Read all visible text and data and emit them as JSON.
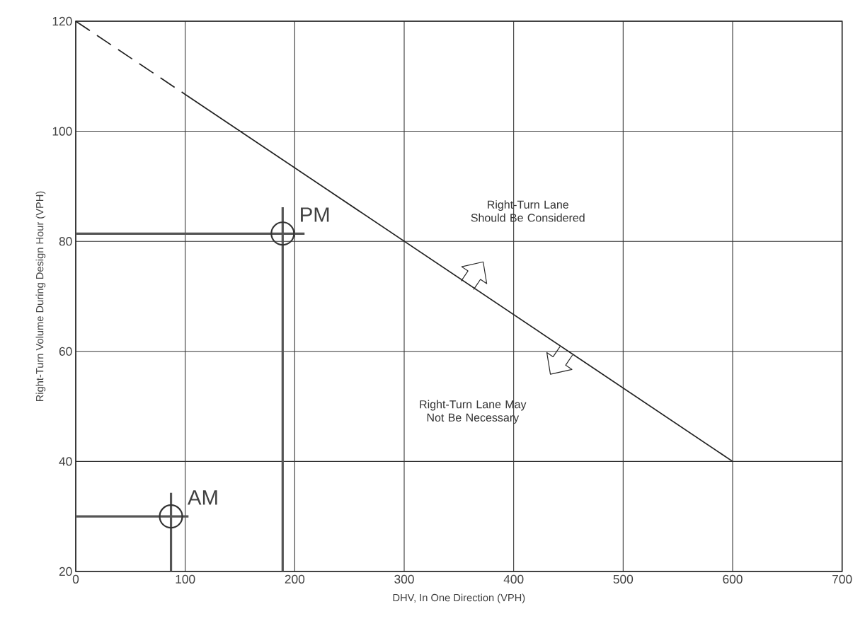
{
  "chart_data": {
    "type": "line",
    "xlabel": "DHV, In One Direction (VPH)",
    "ylabel": "Right-Turn Volume During Design Hour (VPH)",
    "xlim": [
      0,
      700
    ],
    "ylim": [
      20,
      120
    ],
    "xticks": [
      0,
      100,
      200,
      300,
      400,
      500,
      600,
      700
    ],
    "yticks": [
      20,
      40,
      60,
      80,
      100,
      120
    ],
    "grid": true,
    "series": [
      {
        "x": [
          0,
          100
        ],
        "values": [
          120,
          106.7
        ],
        "color": "#222222",
        "line_style": "dashed"
      },
      {
        "x": [
          100,
          600
        ],
        "values": [
          106.7,
          40
        ],
        "color": "#222222",
        "line_style": "solid"
      },
      {
        "x": [
          0,
          103
        ],
        "values": [
          30,
          30
        ],
        "color": "#555555",
        "line_style": "solid"
      },
      {
        "x": [
          87,
          87
        ],
        "values": [
          20,
          34.3
        ],
        "color": "#555555",
        "line_style": "solid"
      },
      {
        "x": [
          0,
          209
        ],
        "values": [
          81.4,
          81.4
        ],
        "color": "#555555",
        "line_style": "solid"
      },
      {
        "x": [
          189,
          189
        ],
        "values": [
          20,
          86.2
        ],
        "color": "#555555",
        "line_style": "solid"
      },
      {
        "type": "scatter",
        "x": [
          87,
          189
        ],
        "values": [
          30,
          81.4
        ],
        "color": "#333333",
        "marker": "circle"
      }
    ],
    "annotations": [
      {
        "text": "AM",
        "x": 87,
        "y": 30
      },
      {
        "text": "PM",
        "x": 189,
        "y": 81.4
      },
      "Right-Turn Lane Should Be Considered",
      "Right-Turn Lane May Not Be Necessary"
    ]
  }
}
